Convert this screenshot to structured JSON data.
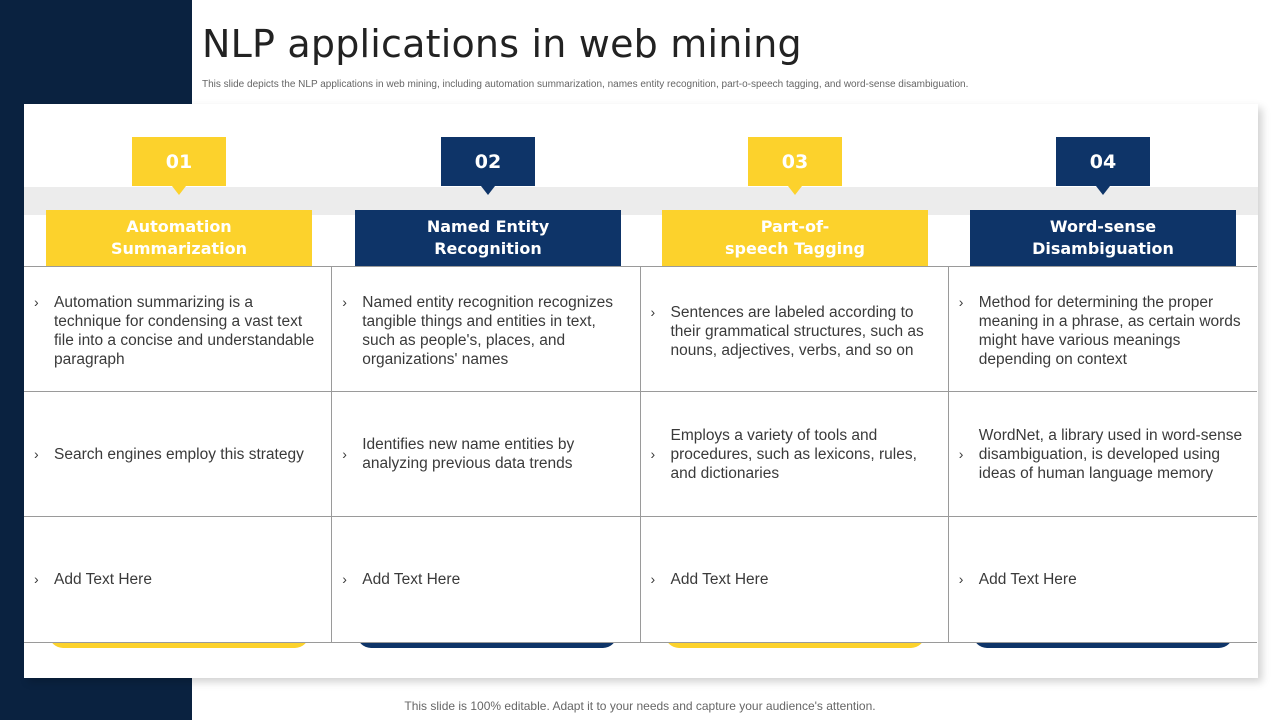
{
  "slide": {
    "title": "NLP applications in web mining",
    "subtitle": "This slide depicts the NLP applications in web mining, including automation  summarization, names entity recognition, part-o-speech tagging, and word-sense disambiguation.",
    "footer": "This slide is 100% editable. Adapt it to your needs and capture your audience's attention."
  },
  "colors": {
    "navy": "#0e3468",
    "yellow": "#fcd22c",
    "sidebar": "#0a2240"
  },
  "bullet_glyph": "›",
  "columns": [
    {
      "number": "01",
      "accent": "yellow",
      "header_line1": "Automation",
      "header_line2": "Summarization",
      "rows": [
        "Automation summarizing is a technique for condensing a vast text file into a concise and understandable paragraph",
        "Search engines employ this strategy",
        "Add Text Here"
      ]
    },
    {
      "number": "02",
      "accent": "navy",
      "header_line1": "Named Entity",
      "header_line2": "Recognition",
      "rows": [
        "Named entity recognition recognizes tangible things and entities in text, such as people's, places, and organizations' names",
        "Identifies new name entities by analyzing previous data trends",
        "Add Text Here"
      ]
    },
    {
      "number": "03",
      "accent": "yellow",
      "header_line1": "Part-of-",
      "header_line2": "speech Tagging",
      "rows": [
        "Sentences are labeled according to their grammatical structures, such as nouns, adjectives, verbs, and so on",
        "Employs a variety of tools and procedures, such as lexicons, rules, and dictionaries",
        "Add Text Here"
      ]
    },
    {
      "number": "04",
      "accent": "navy",
      "header_line1": "Word-sense",
      "header_line2": "Disambiguation",
      "rows": [
        "Method for determining the proper meaning in a phrase, as certain words might have various meanings depending on context",
        "WordNet, a library used in word-sense disambiguation, is developed using ideas of human language memory",
        "Add Text Here"
      ]
    }
  ]
}
